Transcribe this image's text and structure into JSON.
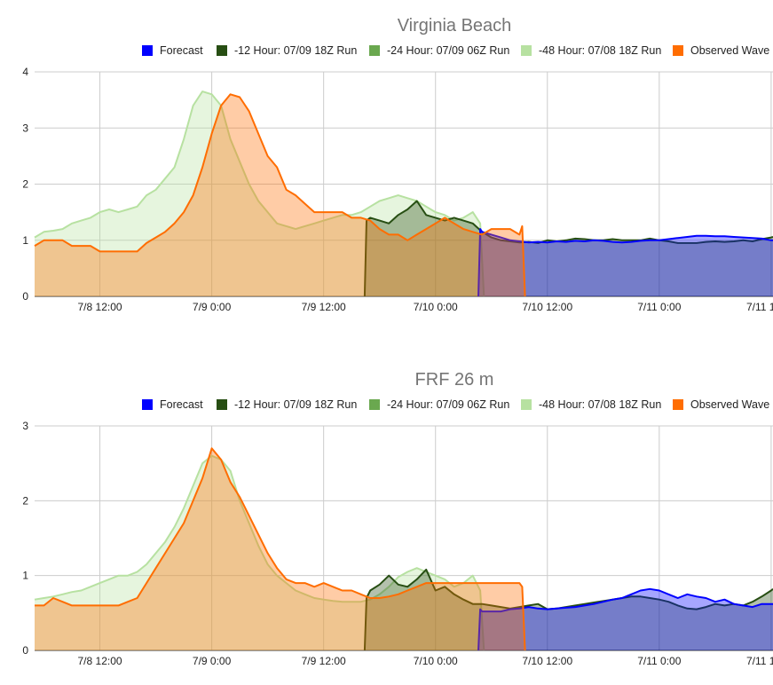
{
  "chart_data": [
    {
      "type": "area",
      "title": "Virginia Beach",
      "x_unit": "hours since 7/8 0:00",
      "xlim": [
        5,
        84.2
      ],
      "ylim": [
        0,
        4
      ],
      "y_ticks": [
        0,
        1,
        2,
        3,
        4
      ],
      "x_ticks": [
        {
          "x": 12,
          "label": "7/8 12:00"
        },
        {
          "x": 24,
          "label": "7/9 0:00"
        },
        {
          "x": 36,
          "label": "7/9 12:00"
        },
        {
          "x": 48,
          "label": "7/10 0:00"
        },
        {
          "x": 60,
          "label": "7/10 12:00"
        },
        {
          "x": 72,
          "label": "7/11 0:00"
        },
        {
          "x": 84,
          "label": "7/11 12:00"
        }
      ],
      "grid": true,
      "legend_position": "top",
      "legend": [
        "Forecast",
        "-12 Hour: 07/09 18Z Run",
        "-24 Hour: 07/09 06Z Run",
        "-48 Hour: 07/08 18Z Run",
        "Observed Wave"
      ],
      "series": [
        {
          "name": "-48 Hour: 07/08 18Z Run",
          "color": "#b7e1a1",
          "x": [
            5,
            6,
            7,
            8,
            9,
            10,
            11,
            12,
            13,
            14,
            15,
            16,
            17,
            18,
            19,
            20,
            21,
            22,
            23,
            24,
            25,
            26,
            27,
            28,
            29,
            30,
            31,
            32,
            33,
            34,
            35,
            36,
            37,
            38,
            39,
            40,
            41,
            42,
            43,
            44,
            45,
            46,
            47,
            48,
            49,
            50,
            51,
            52,
            52.8,
            53.2
          ],
          "y": [
            1.05,
            1.15,
            1.17,
            1.2,
            1.3,
            1.35,
            1.4,
            1.5,
            1.55,
            1.5,
            1.55,
            1.6,
            1.8,
            1.9,
            2.1,
            2.3,
            2.8,
            3.4,
            3.65,
            3.6,
            3.4,
            2.8,
            2.4,
            2.0,
            1.7,
            1.5,
            1.3,
            1.25,
            1.2,
            1.25,
            1.3,
            1.35,
            1.4,
            1.45,
            1.45,
            1.5,
            1.6,
            1.7,
            1.75,
            1.8,
            1.75,
            1.7,
            1.6,
            1.5,
            1.45,
            1.35,
            1.4,
            1.5,
            1.3,
            0
          ]
        },
        {
          "name": "-12 Hour: 07/09 18Z Run",
          "color": "#274e13",
          "x": [
            40.4,
            40.6,
            41,
            42,
            43,
            44,
            45,
            46,
            47,
            48,
            49,
            50,
            51,
            52,
            53,
            54,
            55,
            56,
            57,
            58,
            59,
            60,
            61,
            62,
            63,
            64,
            65,
            66,
            67,
            68,
            69,
            70,
            71,
            72,
            73,
            74,
            75,
            76,
            77,
            78,
            79,
            80,
            81,
            82,
            83,
            84,
            84.2
          ],
          "y": [
            0,
            1.35,
            1.4,
            1.35,
            1.3,
            1.45,
            1.55,
            1.7,
            1.45,
            1.4,
            1.35,
            1.4,
            1.35,
            1.3,
            1.15,
            1.05,
            1.0,
            0.98,
            0.96,
            0.97,
            0.95,
            1.0,
            0.98,
            1.0,
            1.03,
            1.02,
            1.0,
            1.0,
            1.02,
            1.0,
            1.0,
            1.0,
            1.03,
            1.0,
            0.98,
            0.95,
            0.95,
            0.95,
            0.97,
            0.98,
            0.97,
            0.98,
            1.0,
            0.98,
            1.02,
            1.05,
            1.06
          ]
        },
        {
          "name": "Forecast",
          "color": "#0000ff",
          "x": [
            52.6,
            52.8,
            53,
            54,
            55,
            56,
            57,
            58,
            59,
            60,
            61,
            62,
            63,
            64,
            65,
            66,
            67,
            68,
            69,
            70,
            71,
            72,
            73,
            74,
            75,
            76,
            77,
            78,
            79,
            80,
            81,
            82,
            83,
            84,
            84.2
          ],
          "y": [
            0,
            1.2,
            1.15,
            1.1,
            1.05,
            1.0,
            0.98,
            0.96,
            0.97,
            0.96,
            0.98,
            0.97,
            0.99,
            0.98,
            1.0,
            0.99,
            0.97,
            0.96,
            0.97,
            0.99,
            1.0,
            1.0,
            1.02,
            1.04,
            1.06,
            1.08,
            1.08,
            1.07,
            1.07,
            1.06,
            1.05,
            1.04,
            1.03,
            1.0,
            1.0
          ]
        },
        {
          "name": "Observed Wave",
          "color": "#ff6d01",
          "x": [
            5,
            6,
            7,
            8,
            9,
            10,
            11,
            12,
            13,
            14,
            15,
            16,
            17,
            18,
            19,
            20,
            21,
            22,
            23,
            24,
            25,
            26,
            27,
            28,
            29,
            30,
            31,
            32,
            33,
            34,
            35,
            36,
            37,
            38,
            39,
            40,
            41,
            42,
            43,
            44,
            45,
            46,
            47,
            48,
            49,
            50,
            51,
            52,
            53,
            54,
            55,
            56,
            57,
            57.3,
            57.6
          ],
          "y": [
            0.9,
            1.0,
            1.0,
            1.0,
            0.9,
            0.9,
            0.9,
            0.8,
            0.8,
            0.8,
            0.8,
            0.8,
            0.95,
            1.05,
            1.15,
            1.3,
            1.5,
            1.8,
            2.3,
            2.9,
            3.4,
            3.6,
            3.55,
            3.3,
            2.9,
            2.5,
            2.3,
            1.9,
            1.8,
            1.65,
            1.5,
            1.5,
            1.5,
            1.5,
            1.4,
            1.4,
            1.35,
            1.2,
            1.1,
            1.1,
            1.0,
            1.1,
            1.2,
            1.3,
            1.4,
            1.3,
            1.2,
            1.15,
            1.1,
            1.2,
            1.2,
            1.2,
            1.1,
            1.25,
            0
          ]
        }
      ]
    },
    {
      "type": "area",
      "title": "FRF 26 m",
      "x_unit": "hours since 7/8 0:00",
      "xlim": [
        5,
        84.2
      ],
      "ylim": [
        0,
        3
      ],
      "y_ticks": [
        0,
        1,
        2,
        3
      ],
      "x_ticks": [
        {
          "x": 12,
          "label": "7/8 12:00"
        },
        {
          "x": 24,
          "label": "7/9 0:00"
        },
        {
          "x": 36,
          "label": "7/9 12:00"
        },
        {
          "x": 48,
          "label": "7/10 0:00"
        },
        {
          "x": 60,
          "label": "7/10 12:00"
        },
        {
          "x": 72,
          "label": "7/11 0:00"
        },
        {
          "x": 84,
          "label": "7/11 12:00"
        }
      ],
      "grid": true,
      "legend_position": "top",
      "legend": [
        "Forecast",
        "-12 Hour: 07/09 18Z Run",
        "-24 Hour: 07/09 06Z Run",
        "-48 Hour: 07/08 18Z Run",
        "Observed Wave"
      ],
      "series": [
        {
          "name": "-48 Hour: 07/08 18Z Run",
          "color": "#b7e1a1",
          "x": [
            5,
            6,
            7,
            8,
            9,
            10,
            11,
            12,
            13,
            14,
            15,
            16,
            17,
            18,
            19,
            20,
            21,
            22,
            23,
            24,
            25,
            26,
            27,
            28,
            29,
            30,
            31,
            32,
            33,
            34,
            35,
            36,
            37,
            38,
            39,
            40,
            41,
            42,
            43,
            44,
            45,
            46,
            47,
            48,
            49,
            50,
            51,
            52,
            52.8,
            53.2
          ],
          "y": [
            0.68,
            0.7,
            0.72,
            0.75,
            0.78,
            0.8,
            0.85,
            0.9,
            0.95,
            1.0,
            1.0,
            1.05,
            1.15,
            1.3,
            1.45,
            1.65,
            1.9,
            2.2,
            2.5,
            2.6,
            2.55,
            2.4,
            2.0,
            1.7,
            1.4,
            1.15,
            1.0,
            0.9,
            0.8,
            0.75,
            0.7,
            0.68,
            0.66,
            0.65,
            0.65,
            0.65,
            0.68,
            0.75,
            0.85,
            0.98,
            1.05,
            1.1,
            1.05,
            1.0,
            0.95,
            0.85,
            0.9,
            1.0,
            0.8,
            0
          ]
        },
        {
          "name": "-12 Hour: 07/09 18Z Run",
          "color": "#274e13",
          "x": [
            40.4,
            40.6,
            41,
            42,
            43,
            44,
            45,
            46,
            47,
            48,
            49,
            50,
            51,
            52,
            53,
            54,
            55,
            56,
            57,
            58,
            59,
            60,
            61,
            62,
            63,
            64,
            65,
            66,
            67,
            68,
            69,
            70,
            71,
            72,
            73,
            74,
            75,
            76,
            77,
            78,
            79,
            80,
            81,
            82,
            83,
            84,
            84.2
          ],
          "y": [
            0,
            0.7,
            0.8,
            0.88,
            1.0,
            0.88,
            0.85,
            0.95,
            1.08,
            0.8,
            0.85,
            0.75,
            0.68,
            0.62,
            0.62,
            0.6,
            0.58,
            0.56,
            0.58,
            0.6,
            0.62,
            0.55,
            0.56,
            0.58,
            0.6,
            0.62,
            0.64,
            0.66,
            0.68,
            0.7,
            0.72,
            0.72,
            0.7,
            0.68,
            0.65,
            0.6,
            0.56,
            0.55,
            0.58,
            0.62,
            0.6,
            0.62,
            0.6,
            0.65,
            0.72,
            0.8,
            0.82
          ]
        },
        {
          "name": "Forecast",
          "color": "#0000ff",
          "x": [
            52.6,
            52.8,
            53,
            54,
            55,
            56,
            57,
            58,
            59,
            60,
            61,
            62,
            63,
            64,
            65,
            66,
            67,
            68,
            69,
            70,
            71,
            72,
            73,
            74,
            75,
            76,
            77,
            78,
            79,
            80,
            81,
            82,
            83,
            84,
            84.2
          ],
          "y": [
            0,
            0.55,
            0.52,
            0.52,
            0.52,
            0.55,
            0.56,
            0.58,
            0.56,
            0.55,
            0.56,
            0.57,
            0.58,
            0.6,
            0.62,
            0.65,
            0.68,
            0.7,
            0.75,
            0.8,
            0.82,
            0.8,
            0.75,
            0.7,
            0.75,
            0.72,
            0.7,
            0.65,
            0.68,
            0.62,
            0.6,
            0.58,
            0.62,
            0.62,
            0.62
          ]
        },
        {
          "name": "Observed Wave",
          "color": "#ff6d01",
          "x": [
            5,
            6,
            7,
            8,
            9,
            10,
            11,
            12,
            13,
            14,
            15,
            16,
            17,
            18,
            19,
            20,
            21,
            22,
            23,
            24,
            25,
            26,
            27,
            28,
            29,
            30,
            31,
            32,
            33,
            34,
            35,
            36,
            37,
            38,
            39,
            40,
            41,
            42,
            43,
            44,
            45,
            46,
            47,
            48,
            49,
            50,
            51,
            52,
            53,
            54,
            55,
            56,
            57,
            57.3,
            57.6
          ],
          "y": [
            0.6,
            0.6,
            0.7,
            0.65,
            0.6,
            0.6,
            0.6,
            0.6,
            0.6,
            0.6,
            0.65,
            0.7,
            0.9,
            1.1,
            1.3,
            1.5,
            1.7,
            2.0,
            2.3,
            2.7,
            2.55,
            2.25,
            2.05,
            1.8,
            1.55,
            1.3,
            1.1,
            0.95,
            0.9,
            0.9,
            0.85,
            0.9,
            0.85,
            0.8,
            0.8,
            0.75,
            0.7,
            0.7,
            0.72,
            0.75,
            0.8,
            0.85,
            0.9,
            0.9,
            0.9,
            0.9,
            0.9,
            0.9,
            0.9,
            0.9,
            0.9,
            0.9,
            0.9,
            0.85,
            0
          ]
        }
      ]
    }
  ]
}
